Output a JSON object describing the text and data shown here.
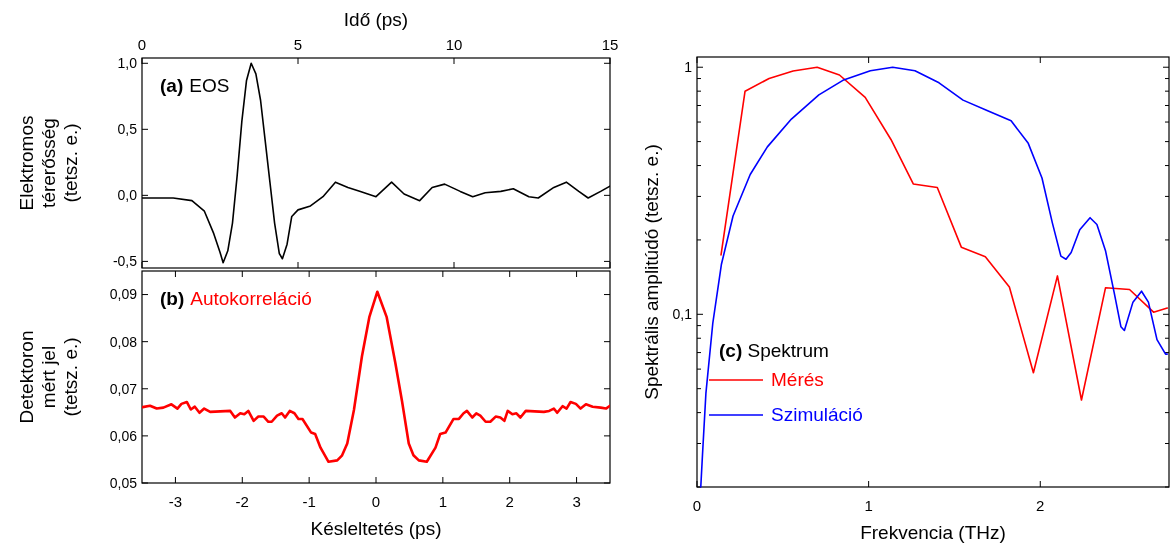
{
  "chart_data": [
    {
      "type": "line",
      "title": "(a)",
      "xlabel": "Idő (ps)",
      "ylabel": "Elektromos\ntérerősség\n(tetsz. e.)",
      "xlim": [
        0,
        15
      ],
      "xticks": [
        0,
        5,
        10,
        15
      ],
      "ylim": [
        -0.55,
        1.04
      ],
      "yticks": [
        {
          "value": -0.5,
          "label": "-0,5"
        },
        {
          "value": 0,
          "label": "0,0"
        },
        {
          "value": 0.5,
          "label": "0,5"
        },
        {
          "value": 1,
          "label": "1,0"
        }
      ],
      "x": [
        0,
        1,
        1.6,
        2.0,
        2.3,
        2.5,
        2.6,
        2.75,
        2.9,
        3.05,
        3.2,
        3.35,
        3.5,
        3.65,
        3.8,
        3.95,
        4.1,
        4.25,
        4.4,
        4.5,
        4.65,
        4.8,
        5.0,
        5.4,
        5.8,
        6.2,
        6.6,
        7.0,
        7.5,
        8.0,
        8.4,
        8.9,
        9.3,
        9.7,
        10.2,
        10.6,
        11.0,
        11.5,
        11.9,
        12.4,
        12.7,
        13.2,
        13.6,
        14.0,
        14.3,
        14.7,
        15.0
      ],
      "series": [
        {
          "name": "EOS",
          "color": "#000000",
          "values": [
            -0.02,
            -0.02,
            -0.04,
            -0.12,
            -0.29,
            -0.43,
            -0.51,
            -0.42,
            -0.21,
            0.15,
            0.56,
            0.87,
            1.0,
            0.92,
            0.72,
            0.41,
            0.1,
            -0.21,
            -0.44,
            -0.48,
            -0.37,
            -0.16,
            -0.11,
            -0.08,
            -0.01,
            0.1,
            0.06,
            0.03,
            -0.01,
            0.1,
            0.01,
            -0.04,
            0.06,
            0.085,
            0.03,
            -0.01,
            0.02,
            0.03,
            0.05,
            -0.01,
            -0.02,
            0.06,
            0.1,
            0.03,
            -0.02,
            0.03,
            0.07
          ]
        }
      ],
      "tick_labels": "xy"
    },
    {
      "type": "line",
      "title": "(b)",
      "xlabel": "Késleltetés (ps)",
      "ylabel": "Detektoron\nmért jel\n(tetsz. e.)",
      "xlim": [
        -3.5,
        3.5
      ],
      "xticks": [
        -3,
        -2,
        -1,
        0,
        1,
        2,
        3
      ],
      "ylim": [
        0.05,
        0.095
      ],
      "yticks": [
        {
          "value": 0.05,
          "label": "0,05"
        },
        {
          "value": 0.06,
          "label": "0,06"
        },
        {
          "value": 0.07,
          "label": "0,07"
        },
        {
          "value": 0.08,
          "label": "0,08"
        },
        {
          "value": 0.09,
          "label": "0,09"
        }
      ],
      "x": [
        -3.49,
        -3.38,
        -3.28,
        -3.18,
        -3.06,
        -2.97,
        -2.91,
        -2.83,
        -2.77,
        -2.71,
        -2.64,
        -2.57,
        -2.48,
        -2.18,
        -2.11,
        -2.03,
        -1.97,
        -1.91,
        -1.83,
        -1.76,
        -1.68,
        -1.61,
        -1.56,
        -1.48,
        -1.41,
        -1.36,
        -1.29,
        -1.22,
        -1.16,
        -1.1,
        -0.97,
        -0.91,
        -0.83,
        -0.71,
        -0.58,
        -0.51,
        -0.43,
        -0.33,
        -0.21,
        -0.1,
        0.02,
        0.16,
        0.29,
        0.39,
        0.49,
        0.56,
        0.64,
        0.76,
        0.89,
        0.96,
        1.04,
        1.16,
        1.24,
        1.31,
        1.36,
        1.44,
        1.5,
        1.56,
        1.64,
        1.71,
        1.79,
        1.86,
        1.92,
        1.97,
        2.04,
        2.1,
        2.16,
        2.24,
        2.51,
        2.59,
        2.66,
        2.71,
        2.79,
        2.85,
        2.91,
        2.99,
        3.06,
        3.14,
        3.24,
        3.36,
        3.44,
        3.5
      ],
      "series": [
        {
          "name": "Autokorreláció",
          "color": "#ff0000",
          "values": [
            0.0661,
            0.0664,
            0.0658,
            0.066,
            0.0667,
            0.0658,
            0.0668,
            0.0672,
            0.0656,
            0.0662,
            0.0649,
            0.0658,
            0.0651,
            0.0653,
            0.0639,
            0.0648,
            0.0646,
            0.0653,
            0.0632,
            0.0641,
            0.0641,
            0.063,
            0.063,
            0.0643,
            0.0648,
            0.0639,
            0.0653,
            0.0648,
            0.0636,
            0.0636,
            0.0607,
            0.0604,
            0.0575,
            0.0545,
            0.0548,
            0.0558,
            0.0584,
            0.0655,
            0.0769,
            0.0852,
            0.0906,
            0.0852,
            0.0754,
            0.0673,
            0.0584,
            0.0559,
            0.0548,
            0.0545,
            0.0575,
            0.0604,
            0.0607,
            0.0636,
            0.0636,
            0.0648,
            0.0653,
            0.0639,
            0.0648,
            0.0643,
            0.063,
            0.063,
            0.0641,
            0.0639,
            0.0632,
            0.0653,
            0.0646,
            0.0648,
            0.0639,
            0.0653,
            0.0651,
            0.0653,
            0.0658,
            0.0649,
            0.0663,
            0.0658,
            0.0672,
            0.0668,
            0.0658,
            0.0667,
            0.0662,
            0.066,
            0.0658,
            0.0664
          ]
        }
      ]
    },
    {
      "type": "line",
      "legend_title": "(c) Spektrum",
      "legend": "bottom left",
      "log": "y",
      "xlabel": "Frekvencia (THz)",
      "ylabel": "Spektrális amplitúdó (tetsz. e.)",
      "xlim": [
        0,
        2.75
      ],
      "xticks": [
        0,
        1,
        2
      ],
      "ylim": [
        0.02,
        1.1
      ],
      "yticks": [
        {
          "value": 0.02,
          "label": null
        },
        {
          "value": 0.03,
          "label": null
        },
        {
          "value": 0.04,
          "label": null
        },
        {
          "value": 0.05,
          "label": null
        },
        {
          "value": 0.06,
          "label": null
        },
        {
          "value": 0.07,
          "label": null
        },
        {
          "value": 0.08,
          "label": null
        },
        {
          "value": 0.09,
          "label": null
        },
        {
          "value": 0.1,
          "label": "0,1"
        },
        {
          "value": 0.2,
          "label": null
        },
        {
          "value": 0.3,
          "label": null
        },
        {
          "value": 0.4,
          "label": null
        },
        {
          "value": 0.5,
          "label": null
        },
        {
          "value": 0.6,
          "label": null
        },
        {
          "value": 0.7,
          "label": null
        },
        {
          "value": 0.8,
          "label": null
        },
        {
          "value": 0.9,
          "label": null
        },
        {
          "value": 1,
          "label": "1"
        }
      ],
      "series": [
        {
          "name": "Mérés",
          "color": "#ff0000",
          "x": [
            0.14,
            0.28,
            0.42,
            0.56,
            0.7,
            0.83,
            0.98,
            1.13,
            1.26,
            1.4,
            1.54,
            1.68,
            1.82,
            1.96,
            2.1,
            2.24,
            2.38,
            2.52,
            2.66,
            2.74
          ],
          "values": [
            0.174,
            0.8,
            0.9,
            0.965,
            1.0,
            0.93,
            0.755,
            0.51,
            0.337,
            0.326,
            0.187,
            0.171,
            0.129,
            0.058,
            0.143,
            0.045,
            0.128,
            0.126,
            0.102,
            0.106
          ]
        },
        {
          "name": "Szimuláció",
          "color": "#0000ff",
          "x": [
            0.022,
            0.032,
            0.052,
            0.092,
            0.142,
            0.21,
            0.31,
            0.41,
            0.55,
            0.71,
            0.85,
            1.01,
            1.14,
            1.27,
            1.41,
            1.55,
            1.69,
            1.83,
            1.93,
            2.01,
            2.07,
            2.12,
            2.15,
            2.18,
            2.23,
            2.29,
            2.33,
            2.38,
            2.43,
            2.47,
            2.49,
            2.54,
            2.59,
            2.63,
            2.68,
            2.73,
            2.74
          ],
          "values": [
            0.02,
            0.027,
            0.048,
            0.092,
            0.159,
            0.25,
            0.368,
            0.476,
            0.617,
            0.773,
            0.885,
            0.968,
            1.0,
            0.968,
            0.865,
            0.736,
            0.668,
            0.607,
            0.492,
            0.356,
            0.235,
            0.172,
            0.167,
            0.178,
            0.22,
            0.246,
            0.231,
            0.181,
            0.123,
            0.089,
            0.086,
            0.112,
            0.124,
            0.112,
            0.079,
            0.069,
            0.069
          ]
        }
      ]
    }
  ]
}
